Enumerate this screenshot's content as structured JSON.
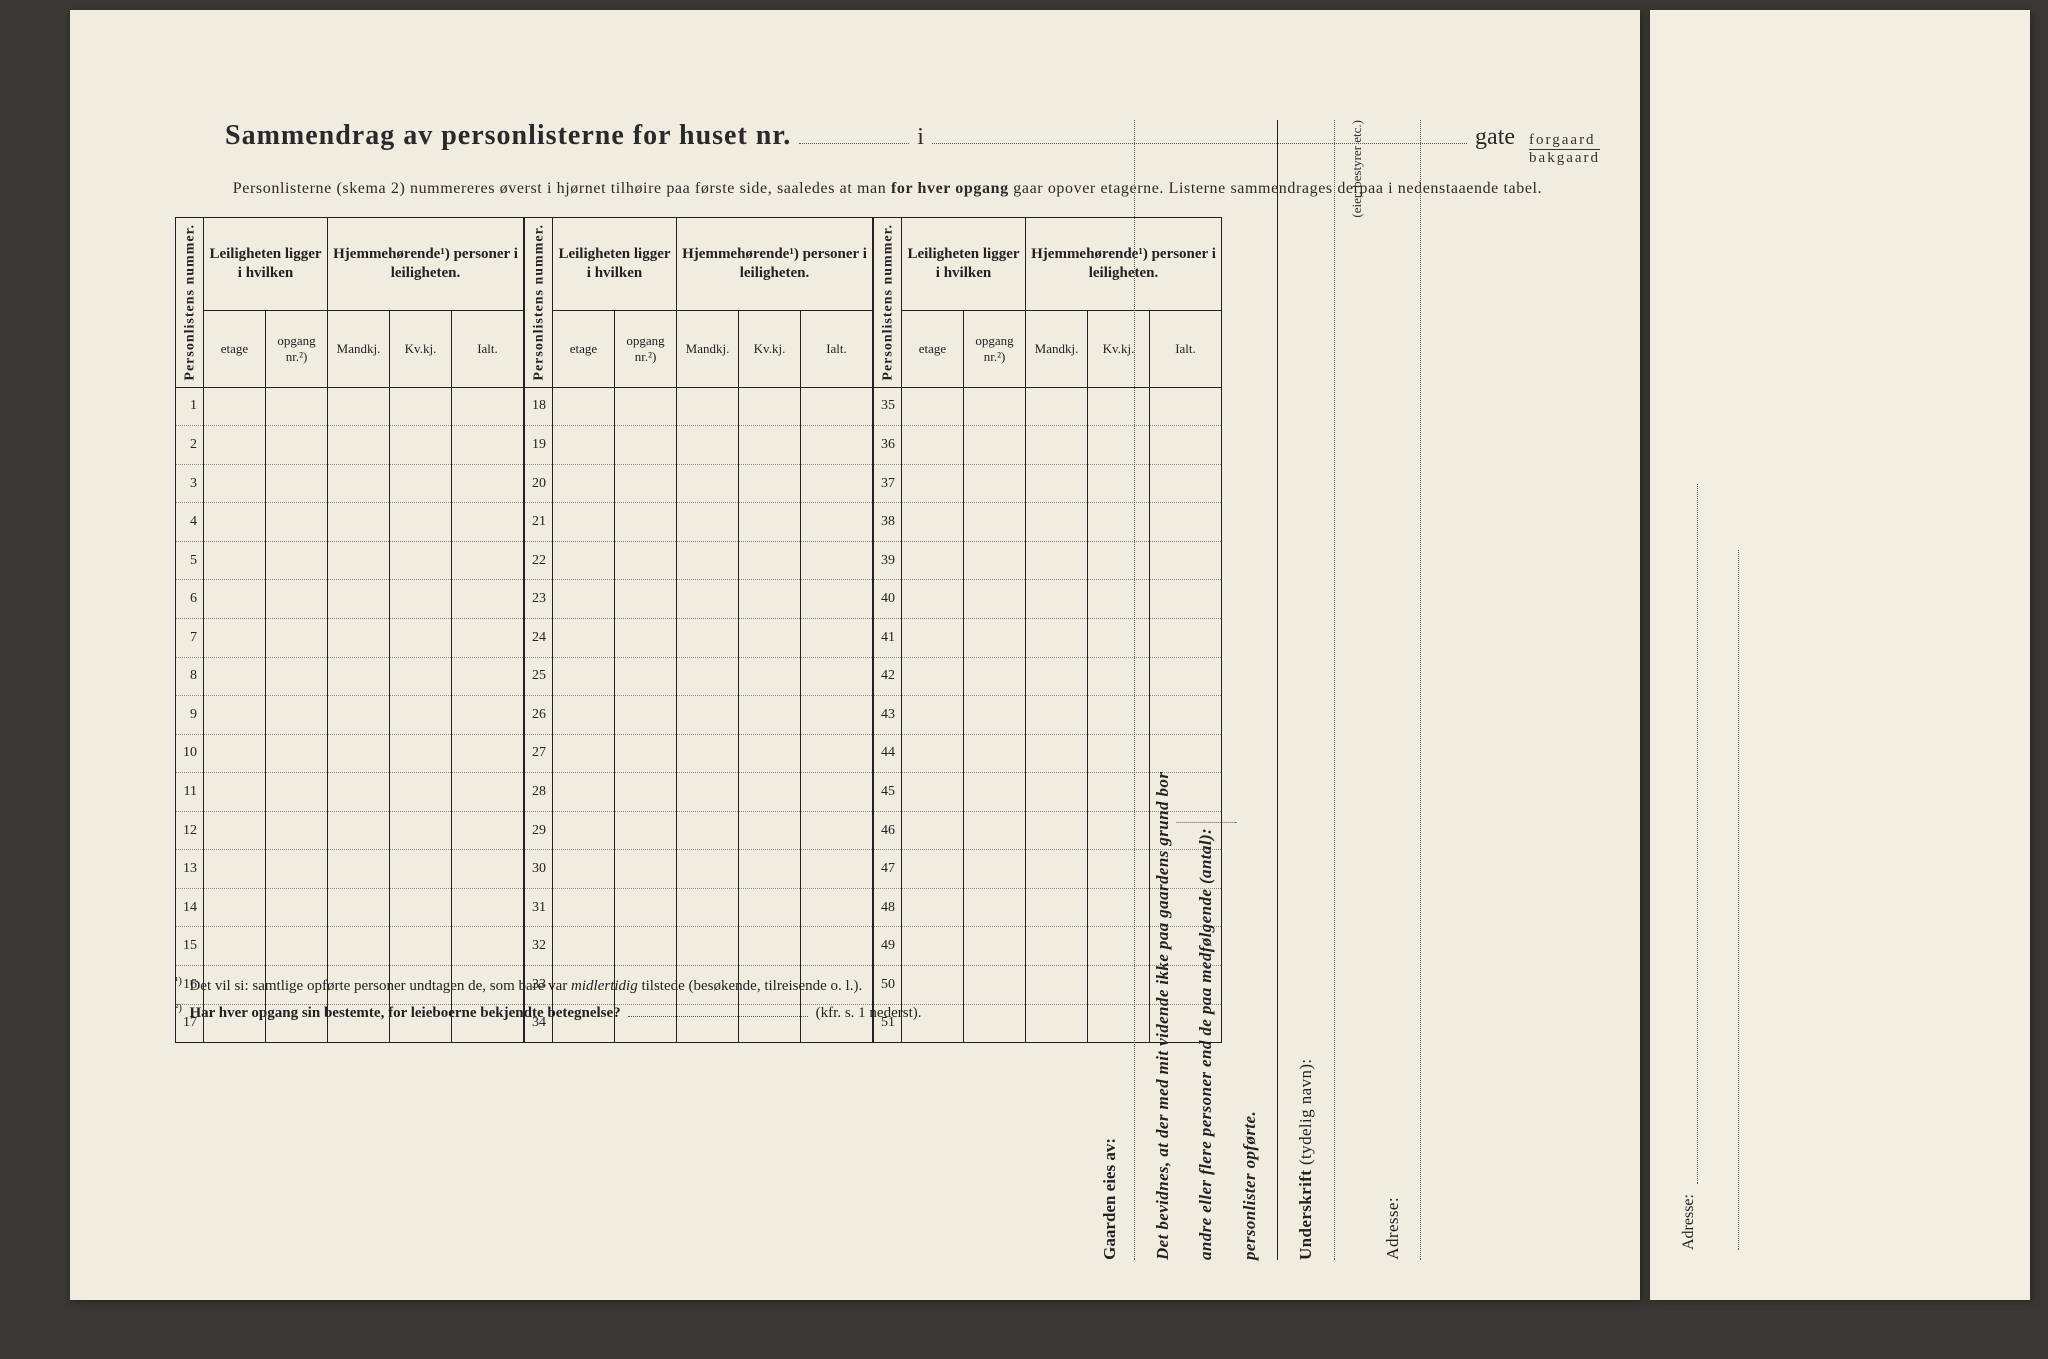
{
  "title": {
    "main": "Sammendrag av personlisterne for huset nr.",
    "sep": "i",
    "gate": "gate",
    "forgaard": "forgaard",
    "bakgaard": "bakgaard"
  },
  "subtitle_a": "Personlisterne (skema 2) nummereres øverst i hjørnet tilhøire paa første side, saaledes at man ",
  "subtitle_b": "for hver opgang",
  "subtitle_c": " gaar opover etagerne.  Listerne sammendrages derpaa i nedenstaaende tabel.",
  "headers": {
    "personlistens": "Personlistens nummer.",
    "leiligheten": "Leiligheten ligger i hvilken",
    "hjemme": "Hjemmehørende¹) personer i leiligheten.",
    "etage": "etage",
    "opgang": "opgang nr.²)",
    "mandkj": "Mandkj.",
    "kvkj": "Kv.kj.",
    "ialt": "Ialt."
  },
  "groups": [
    {
      "start": 1,
      "end": 17
    },
    {
      "start": 18,
      "end": 34
    },
    {
      "start": 35,
      "end": 51
    }
  ],
  "col_widths": {
    "num": 28,
    "etage": 62,
    "opgang": 62,
    "mandkj": 62,
    "kvkj": 62,
    "ialt": 72
  },
  "footnotes": {
    "f1_sup": "¹)",
    "f1_a": "Det vil si: samtlige opførte personer undtagen de, som bare var ",
    "f1_i": "midlertidig",
    "f1_b": " tilstede (besøkende, tilreisende o. l.).",
    "f2_sup": "²)",
    "f2_bold": "Har hver opgang sin bestemte, for leieboerne bekjendte betegnelse?",
    "f2_tail": "(kfr. s. 1 nederst)."
  },
  "sidebar": {
    "bevidnes_a": "Det bevidnes, at der med mit vidende ikke paa gaardens grund bor",
    "bevidnes_b": "andre eller flere personer end de paa medfølgende (antal):",
    "bevidnes_c": "personlister opførte.",
    "underskrift": "Underskrift",
    "underskrift_note": "(tydelig navn):",
    "eier_note": "(eier, bestyrer etc.)",
    "gaarden": "Gaarden eies av:",
    "adresse": "Adresse:"
  }
}
